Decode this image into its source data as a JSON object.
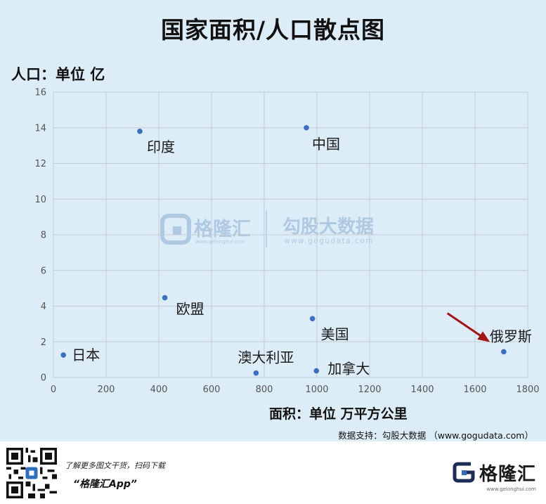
{
  "title": "国家面积/人口散点图",
  "source_text": "数据支持：勾股大数据 （www.gogudata.com）",
  "watermark": {
    "brand": "格隆汇",
    "brand_url": "www.gelonghui.com",
    "partner": "勾股大数据",
    "partner_url": "www.gogudata.com"
  },
  "footer": {
    "promo_line": "了解更多图文干货，扫码下载",
    "app_name": "“格隆汇App”",
    "brand": "格隆汇",
    "brand_url": "www.gelonghui.com"
  },
  "colors": {
    "point": "#3a6fc4",
    "arrow": "#a41616",
    "background": "#dcedf8",
    "grid": "#c5ccd4"
  },
  "chart_data": {
    "type": "scatter",
    "title": "国家面积/人口散点图",
    "xlabel": "面积：单位 万平方公里",
    "ylabel": "人口：单位 亿",
    "xlim": [
      0,
      1800
    ],
    "ylim": [
      0,
      16
    ],
    "xticks": [
      0,
      200,
      400,
      600,
      800,
      1000,
      1200,
      1400,
      1600,
      1800
    ],
    "yticks": [
      0,
      2,
      4,
      6,
      8,
      10,
      12,
      14,
      16
    ],
    "grid": true,
    "points": [
      {
        "label": "日本",
        "x": 38,
        "y": 1.26
      },
      {
        "label": "欧盟",
        "x": 423,
        "y": 4.47
      },
      {
        "label": "印度",
        "x": 328,
        "y": 13.8
      },
      {
        "label": "中国",
        "x": 960,
        "y": 14.0
      },
      {
        "label": "美国",
        "x": 983,
        "y": 3.3
      },
      {
        "label": "澳大利亚",
        "x": 769,
        "y": 0.25
      },
      {
        "label": "加拿大",
        "x": 998,
        "y": 0.37
      },
      {
        "label": "俄罗斯",
        "x": 1709,
        "y": 1.44
      }
    ],
    "annotations": [
      {
        "type": "arrow",
        "from": [
          1495,
          3.6
        ],
        "to": [
          1650,
          2.05
        ]
      }
    ]
  }
}
